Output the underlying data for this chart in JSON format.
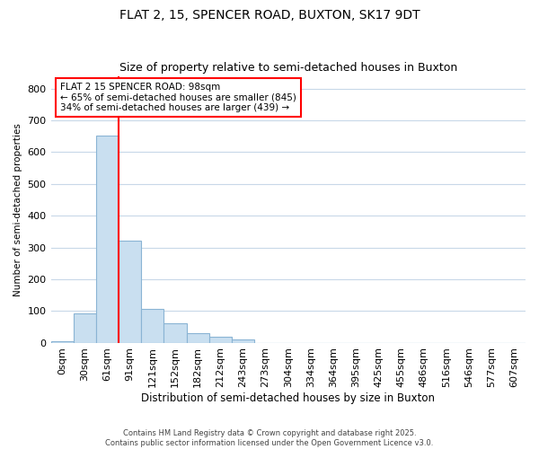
{
  "title": "FLAT 2, 15, SPENCER ROAD, BUXTON, SK17 9DT",
  "subtitle": "Size of property relative to semi-detached houses in Buxton",
  "xlabel": "Distribution of semi-detached houses by size in Buxton",
  "ylabel": "Number of semi-detached properties",
  "bar_labels": [
    "0sqm",
    "30sqm",
    "61sqm",
    "91sqm",
    "121sqm",
    "152sqm",
    "182sqm",
    "212sqm",
    "243sqm",
    "273sqm",
    "304sqm",
    "334sqm",
    "364sqm",
    "395sqm",
    "425sqm",
    "455sqm",
    "486sqm",
    "516sqm",
    "546sqm",
    "577sqm",
    "607sqm"
  ],
  "bar_values": [
    5,
    93,
    651,
    320,
    107,
    62,
    30,
    18,
    10,
    0,
    0,
    0,
    0,
    0,
    0,
    0,
    0,
    0,
    0,
    0,
    0
  ],
  "bar_color": "#c9dff0",
  "bar_edge_color": "#8ab4d4",
  "vline_x": 2.5,
  "vline_color": "red",
  "annotation_text": "FLAT 2 15 SPENCER ROAD: 98sqm\n← 65% of semi-detached houses are smaller (845)\n34% of semi-detached houses are larger (439) →",
  "annotation_box_color": "white",
  "annotation_box_edge": "red",
  "ylim": [
    0,
    840
  ],
  "yticks": [
    0,
    100,
    200,
    300,
    400,
    500,
    600,
    700,
    800
  ],
  "plot_bg_color": "#ffffff",
  "fig_bg_color": "#ffffff",
  "grid_color": "#c8d8e8",
  "footer": "Contains HM Land Registry data © Crown copyright and database right 2025.\nContains public sector information licensed under the Open Government Licence v3.0."
}
